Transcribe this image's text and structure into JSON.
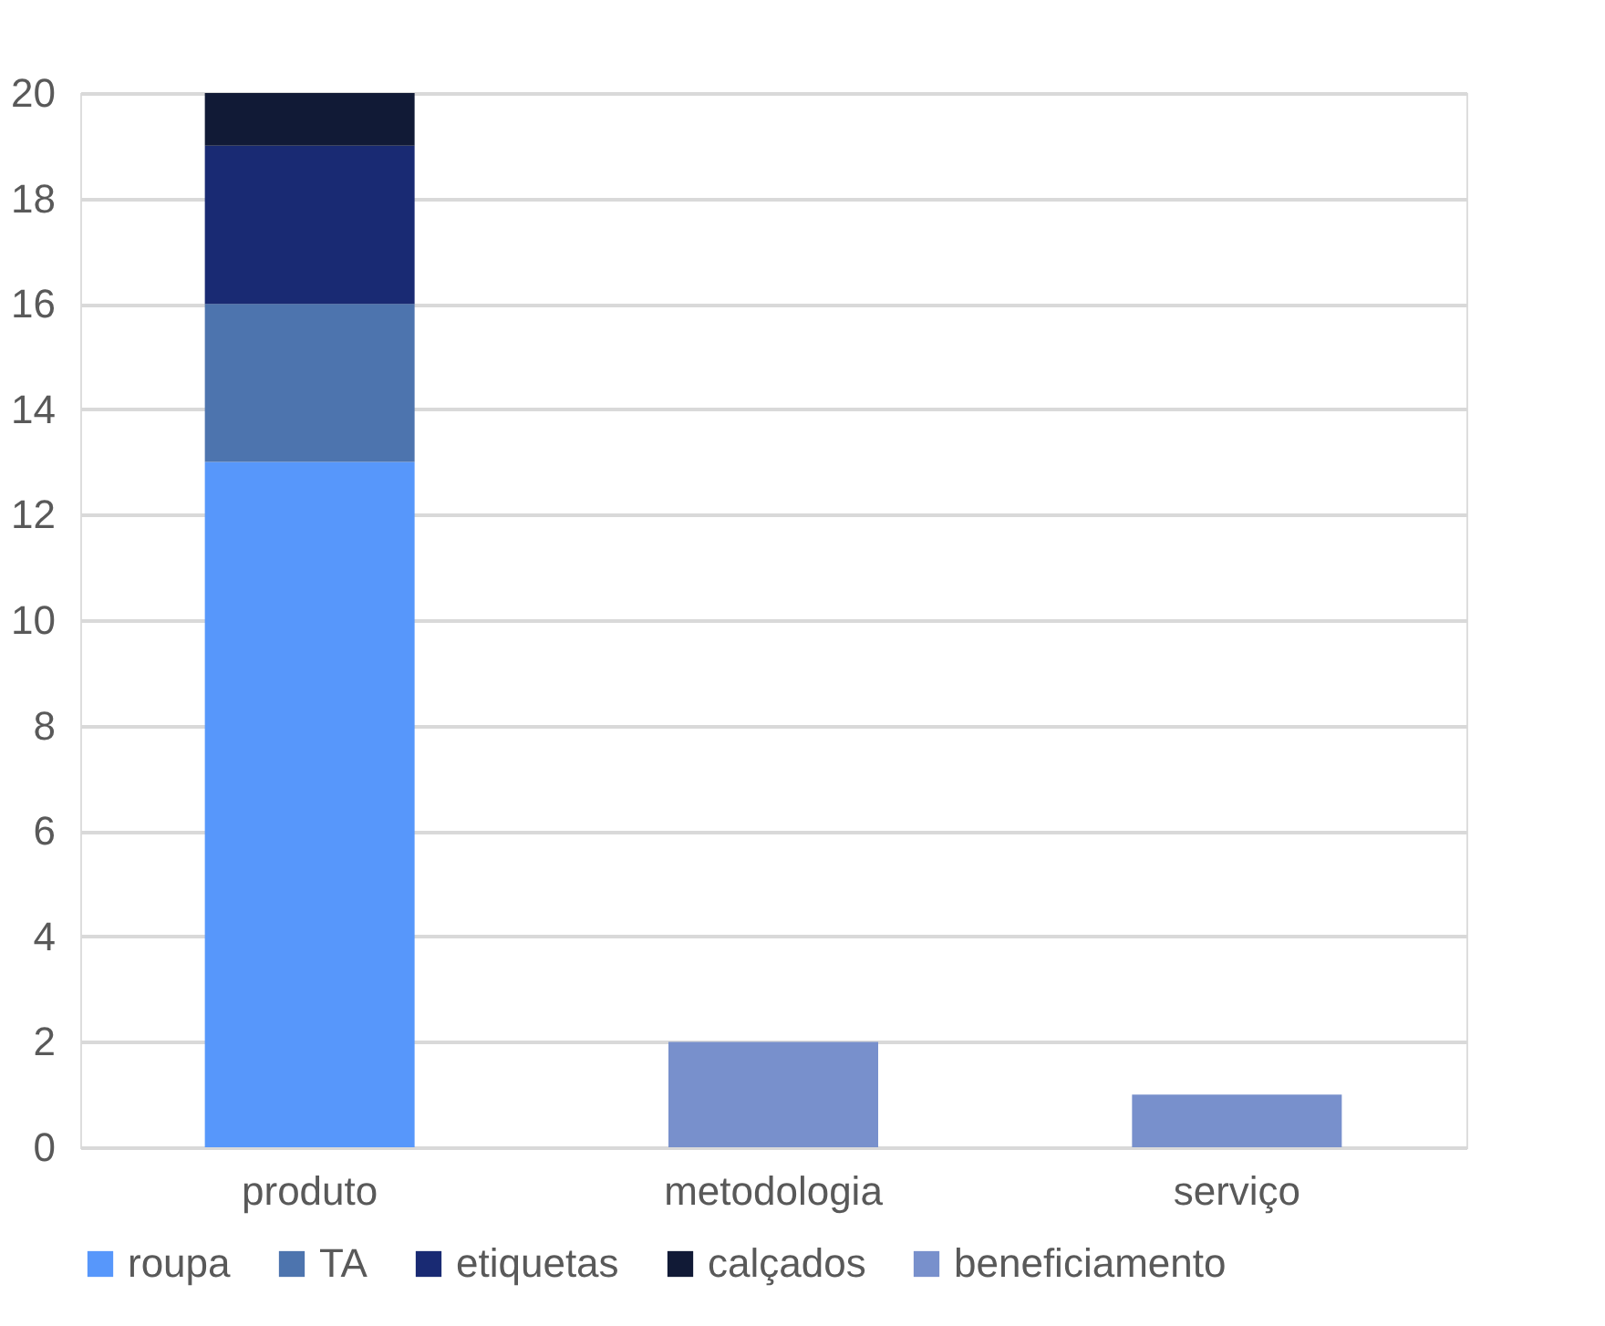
{
  "chart_data": {
    "type": "bar",
    "stacked": true,
    "categories": [
      "produto",
      "metodologia",
      "serviço"
    ],
    "series": [
      {
        "name": "roupa",
        "color": "#5797fb",
        "values": [
          13,
          0,
          0
        ]
      },
      {
        "name": "TA",
        "color": "#4d74ae",
        "values": [
          3,
          0,
          0
        ]
      },
      {
        "name": "etiquetas",
        "color": "#192a73",
        "values": [
          3,
          0,
          0
        ]
      },
      {
        "name": "calçados",
        "color": "#111a36",
        "values": [
          1,
          0,
          0
        ]
      },
      {
        "name": "beneficiamento",
        "color": "#7890cc",
        "values": [
          0,
          2,
          1
        ]
      }
    ],
    "ylim": [
      0,
      20
    ],
    "yticks": [
      0,
      2,
      4,
      6,
      8,
      10,
      12,
      14,
      16,
      18,
      20
    ],
    "grid": "y",
    "legend": "bottom"
  }
}
